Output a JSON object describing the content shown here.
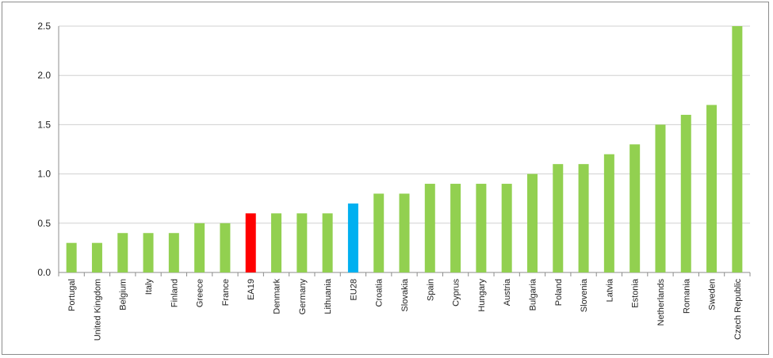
{
  "chart_data": {
    "type": "bar",
    "title": "",
    "xlabel": "",
    "ylabel": "",
    "ylim": [
      0,
      2.5
    ],
    "yticks": [
      0.0,
      0.5,
      1.0,
      1.5,
      2.0,
      2.5
    ],
    "ytick_labels": [
      "0.0",
      "0.5",
      "1.0",
      "1.5",
      "2.0",
      "2.5"
    ],
    "grid": true,
    "legend": "none",
    "categories": [
      "Portugal",
      "United Kingdom",
      "Belgium",
      "Italy",
      "Finland",
      "Greece",
      "France",
      "EA19",
      "Denmark",
      "Germany",
      "Lithuania",
      "EU28",
      "Croatia",
      "Slovakia",
      "Spain",
      "Cyprus",
      "Hungary",
      "Austria",
      "Bulgaria",
      "Poland",
      "Slovenia",
      "Latvia",
      "Estonia",
      "Netherlands",
      "Romania",
      "Sweden",
      "Czech Republic"
    ],
    "values": [
      0.3,
      0.3,
      0.4,
      0.4,
      0.4,
      0.5,
      0.5,
      0.6,
      0.6,
      0.6,
      0.6,
      0.7,
      0.8,
      0.8,
      0.9,
      0.9,
      0.9,
      0.9,
      1.0,
      1.1,
      1.1,
      1.2,
      1.3,
      1.5,
      1.6,
      1.7,
      2.5
    ],
    "bar_colors": [
      "#92d050",
      "#92d050",
      "#92d050",
      "#92d050",
      "#92d050",
      "#92d050",
      "#92d050",
      "#ff0000",
      "#92d050",
      "#92d050",
      "#92d050",
      "#00b0f0",
      "#92d050",
      "#92d050",
      "#92d050",
      "#92d050",
      "#92d050",
      "#92d050",
      "#92d050",
      "#92d050",
      "#92d050",
      "#92d050",
      "#92d050",
      "#92d050",
      "#92d050",
      "#92d050",
      "#92d050"
    ],
    "colors": {
      "default_bar": "#92d050",
      "ea19": "#ff0000",
      "eu28": "#00b0f0",
      "gridline": "#d0d0d0",
      "axis": "#8c8c8c"
    }
  }
}
